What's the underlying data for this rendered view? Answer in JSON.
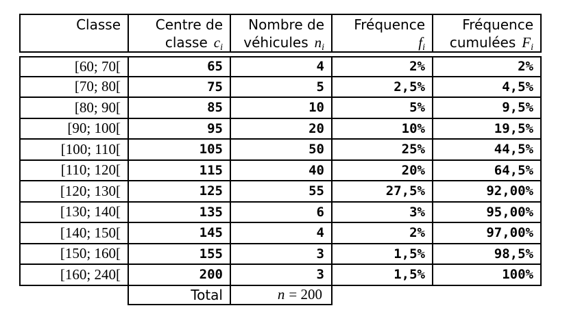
{
  "table": {
    "border_color": "#000000",
    "text_color": "#000000",
    "background": "#ffffff",
    "headers": {
      "classe": {
        "line1": "Classe",
        "line2_text": "",
        "math_var": "",
        "math_sub": ""
      },
      "centre": {
        "line1": "Centre de",
        "line2_text": "classe",
        "math_var": "c",
        "math_sub": "i"
      },
      "nombre": {
        "line1": "Nombre de",
        "line2_text": "véhicules",
        "math_var": "n",
        "math_sub": "i"
      },
      "freq": {
        "line1": "Fréquence",
        "line2_text": "",
        "math_var": "f",
        "math_sub": "i"
      },
      "freq_cum": {
        "line1": "Fréquence",
        "line2_text": "cumulées",
        "math_var": "F",
        "math_sub": "i"
      }
    },
    "rows": [
      {
        "classe": "[60; 70[",
        "centre": "65",
        "nombre": "4",
        "freq": "2%",
        "freq_cum": "2%"
      },
      {
        "classe": "[70; 80[",
        "centre": "75",
        "nombre": "5",
        "freq": "2,5%",
        "freq_cum": "4,5%"
      },
      {
        "classe": "[80; 90[",
        "centre": "85",
        "nombre": "10",
        "freq": "5%",
        "freq_cum": "9,5%"
      },
      {
        "classe": "[90; 100[",
        "centre": "95",
        "nombre": "20",
        "freq": "10%",
        "freq_cum": "19,5%"
      },
      {
        "classe": "[100; 110[",
        "centre": "105",
        "nombre": "50",
        "freq": "25%",
        "freq_cum": "44,5%"
      },
      {
        "classe": "[110; 120[",
        "centre": "115",
        "nombre": "40",
        "freq": "20%",
        "freq_cum": "64,5%"
      },
      {
        "classe": "[120; 130[",
        "centre": "125",
        "nombre": "55",
        "freq": "27,5%",
        "freq_cum": "92,00%"
      },
      {
        "classe": "[130; 140[",
        "centre": "135",
        "nombre": "6",
        "freq": "3%",
        "freq_cum": "95,00%"
      },
      {
        "classe": "[140; 150[",
        "centre": "145",
        "nombre": "4",
        "freq": "2%",
        "freq_cum": "97,00%"
      },
      {
        "classe": "[150; 160[",
        "centre": "155",
        "nombre": "3",
        "freq": "1,5%",
        "freq_cum": "98,5%"
      },
      {
        "classe": "[160; 240[",
        "centre": "200",
        "nombre": "3",
        "freq": "1,5%",
        "freq_cum": "100%"
      }
    ],
    "total": {
      "label": "Total",
      "math_var": "n",
      "math_rest": "= 200"
    }
  },
  "chart_data": {
    "type": "table",
    "title": "",
    "columns": [
      "Classe",
      "Centre de classe c_i",
      "Nombre de véhicules n_i",
      "Fréquence f_i",
      "Fréquence cumulées F_i"
    ],
    "rows": [
      [
        "[60; 70[",
        65,
        4,
        "2%",
        "2%"
      ],
      [
        "[70; 80[",
        75,
        5,
        "2,5%",
        "4,5%"
      ],
      [
        "[80; 90[",
        85,
        10,
        "5%",
        "9,5%"
      ],
      [
        "[90; 100[",
        95,
        20,
        "10%",
        "19,5%"
      ],
      [
        "[100; 110[",
        105,
        50,
        "25%",
        "44,5%"
      ],
      [
        "[110; 120[",
        115,
        40,
        "20%",
        "64,5%"
      ],
      [
        "[120; 130[",
        125,
        55,
        "27,5%",
        "92,00%"
      ],
      [
        "[130; 140[",
        135,
        6,
        "3%",
        "95,00%"
      ],
      [
        "[140; 150[",
        145,
        4,
        "2%",
        "97,00%"
      ],
      [
        "[150; 160[",
        155,
        3,
        "1,5%",
        "98,5%"
      ],
      [
        "[160; 240[",
        200,
        3,
        "1,5%",
        "100%"
      ]
    ],
    "total_row": [
      "Total",
      "n = 200"
    ],
    "n_total": 200
  }
}
